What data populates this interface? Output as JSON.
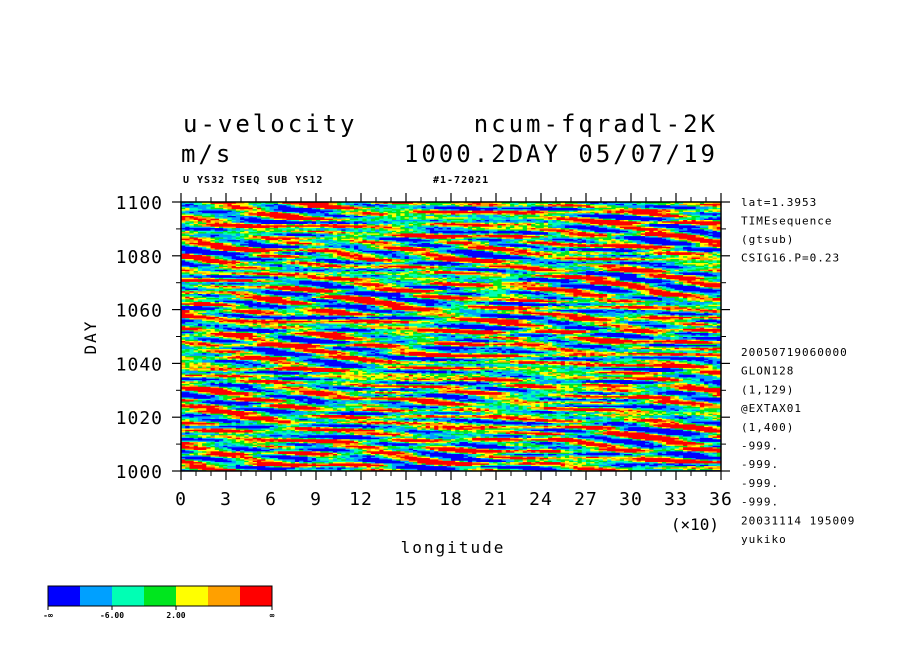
{
  "header": {
    "title_left": "u-velocity",
    "title_right": "ncum-fqradl-2K",
    "units": "m/s",
    "time_label": "1000.2DAY 05/07/19",
    "sub_left": "U YS32 TSEQ SUB YS12",
    "sub_right": "#1-72021"
  },
  "side_info": {
    "top": [
      "lat=1.3953",
      "TIMEsequence",
      "(gtsub)",
      "CSIG16.P=0.23"
    ],
    "bottom": [
      "20050719060000",
      "GLON128",
      "(1,129)",
      "@EXTAX01",
      "(1,400)",
      "-999.",
      "-999.",
      "-999.",
      "-999.",
      "20031114 195009",
      "yukiko"
    ]
  },
  "chart_data": {
    "type": "heatmap",
    "xlabel": "longitude",
    "ylabel": "DAY",
    "x_multiplier_label": "(×10)",
    "xlim": [
      0,
      36
    ],
    "ylim": [
      1000,
      1100
    ],
    "x_ticks": [
      "0",
      "3",
      "6",
      "9",
      "12",
      "15",
      "18",
      "21",
      "24",
      "27",
      "30",
      "33",
      "36"
    ],
    "y_ticks": [
      "1000",
      "1020",
      "1040",
      "1060",
      "1080",
      "1100"
    ],
    "colorbar": {
      "colors": [
        "#0000ff",
        "#00a0ff",
        "#00ffb4",
        "#00e61e",
        "#ffff00",
        "#ffa000",
        "#ff0000"
      ],
      "labels": [
        "-∞",
        "-6.00",
        "2.00",
        "∞"
      ]
    }
  }
}
